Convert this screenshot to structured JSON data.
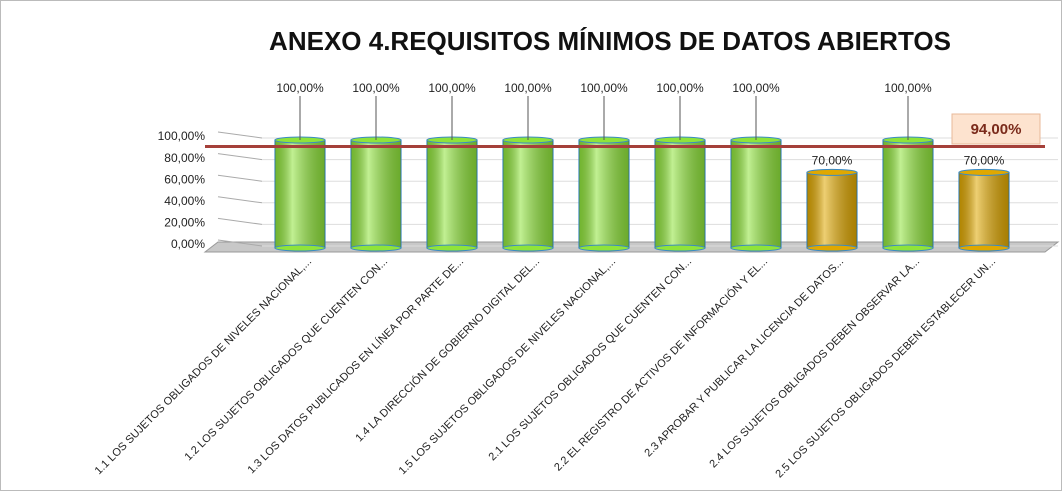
{
  "chart_data": {
    "type": "bar",
    "title": "ANEXO 4.REQUISITOS MÍNIMOS DE DATOS ABIERTOS",
    "categories": [
      "1.1 LOS SUJETOS OBLIGADOS DE NIVELES NACIONAL,...",
      "1.2 LOS SUJETOS OBLIGADOS QUE CUENTEN CON...",
      "1.3 LOS DATOS PUBLICADOS EN LÍNEA POR PARTE DE...",
      "1.4 LA DIRECCIÓN DE GOBIERNO DIGITAL DEL...",
      "1.5 LOS SUJETOS OBLIGADOS DE NIVELES NACIONAL,...",
      "2.1 LOS SUJETOS OBLIGADOS QUE CUENTEN CON...",
      "2.2 EL REGISTRO DE ACTIVOS DE INFORMACIÓN Y EL...",
      "2.3 APROBAR Y PUBLICAR LA LICENCIA DE DATOS...",
      "2.4 LOS SUJETOS OBLIGADOS DEBEN OBSERVAR LA...",
      "2.5 LOS SUJETOS OBLIGADOS DEBEN ESTABLECER UN..."
    ],
    "values": [
      100,
      100,
      100,
      100,
      100,
      100,
      100,
      70,
      100,
      70
    ],
    "value_labels": [
      "100,00%",
      "100,00%",
      "100,00%",
      "100,00%",
      "100,00%",
      "100,00%",
      "100,00%",
      "70,00%",
      "100,00%",
      "70,00%"
    ],
    "colors": [
      "#8fe43a",
      "#8fe43a",
      "#8fe43a",
      "#8fe43a",
      "#8fe43a",
      "#8fe43a",
      "#8fe43a",
      "#e0a800",
      "#8fe43a",
      "#e0a800"
    ],
    "ylim": [
      0,
      100
    ],
    "yticks": [
      {
        "value": 0,
        "label": "0,00%"
      },
      {
        "value": 20,
        "label": "20,00%"
      },
      {
        "value": 40,
        "label": "40,00%"
      },
      {
        "value": 60,
        "label": "60,00%"
      },
      {
        "value": 80,
        "label": "80,00%"
      },
      {
        "value": 100,
        "label": "100,00%"
      }
    ],
    "reference_line": {
      "value": 94,
      "label": "94,00%",
      "color": "#a5403a"
    }
  }
}
